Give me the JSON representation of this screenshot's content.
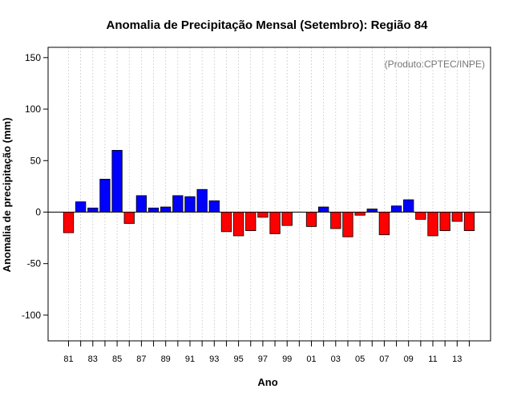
{
  "chart_data": {
    "type": "bar",
    "title": "Anomalia de Precipitação Mensal (Setembro): Região 84",
    "xlabel": "Ano",
    "ylabel": "Anomalia de precipitação (mm)",
    "annotation": "(Produto:CPTEC/INPE)",
    "ylim": [
      -125,
      160
    ],
    "yticks": [
      -100,
      -50,
      0,
      50,
      100,
      150
    ],
    "x_tick_labels": [
      "81",
      "83",
      "85",
      "87",
      "89",
      "91",
      "93",
      "95",
      "97",
      "99",
      "01",
      "03",
      "05",
      "07",
      "09",
      "11",
      "13"
    ],
    "grid": true,
    "positive_color": "#0000ff",
    "negative_color": "#ff0000",
    "years": [
      1981,
      1982,
      1983,
      1984,
      1985,
      1986,
      1987,
      1988,
      1989,
      1990,
      1991,
      1992,
      1993,
      1994,
      1995,
      1996,
      1997,
      1998,
      1999,
      2000,
      2001,
      2002,
      2003,
      2004,
      2005,
      2006,
      2007,
      2008,
      2009,
      2010,
      2011,
      2012,
      2013,
      2014
    ],
    "values": [
      -20,
      10,
      4,
      32,
      60,
      -11,
      16,
      4,
      5,
      16,
      15,
      22,
      11,
      -19,
      -23,
      -18,
      -5,
      -21,
      -13,
      0,
      -14,
      5,
      -16,
      -24,
      -3,
      3,
      -22,
      6,
      12,
      -7,
      -23,
      -18,
      -9,
      -18
    ]
  }
}
